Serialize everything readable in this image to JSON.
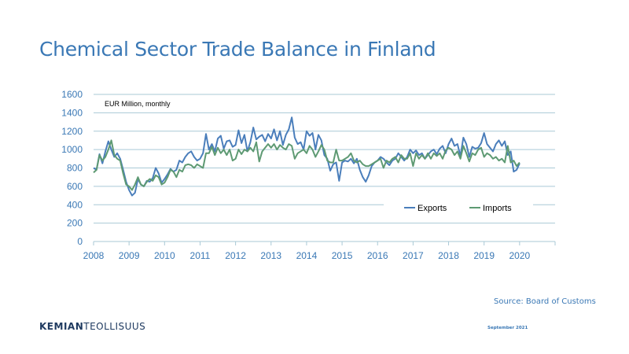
{
  "title": "Chemical Sector Trade Balance in Finland",
  "source": "Source: Board of Customs",
  "logo": {
    "part1": "KEMIAN",
    "part2": "TEOLLISUUS"
  },
  "date": "September 2021",
  "colors": {
    "exports": "#4a7ebb",
    "imports": "#5e9a73",
    "accent": "#3a78b5",
    "grid": "#a9c9d6"
  },
  "chart_data": {
    "type": "line",
    "unit_label": "EUR Million, monthly",
    "ylim": [
      0,
      1600
    ],
    "yticks": [
      0,
      200,
      400,
      600,
      800,
      1000,
      1200,
      1400,
      1600
    ],
    "xlim": [
      2008,
      2021
    ],
    "xticks": [
      2008,
      2009,
      2010,
      2011,
      2012,
      2013,
      2014,
      2015,
      2016,
      2017,
      2018,
      2019,
      2020
    ],
    "grid": "horizontal",
    "legend": "bottom-right",
    "start": "2008-01",
    "series": [
      {
        "name": "Exports",
        "values": [
          800,
          780,
          950,
          850,
          980,
          1090,
          1000,
          920,
          960,
          900,
          780,
          650,
          560,
          500,
          530,
          680,
          620,
          600,
          660,
          650,
          690,
          800,
          740,
          640,
          680,
          730,
          790,
          760,
          780,
          880,
          860,
          920,
          960,
          980,
          920,
          880,
          900,
          960,
          1170,
          1000,
          1060,
          980,
          1120,
          1150,
          1010,
          1090,
          1100,
          1030,
          1050,
          1210,
          1070,
          1160,
          980,
          1080,
          1240,
          1110,
          1140,
          1160,
          1090,
          1170,
          1120,
          1220,
          1100,
          1200,
          1050,
          1160,
          1220,
          1350,
          1130,
          1060,
          1080,
          1000,
          1200,
          1150,
          1180,
          1000,
          1160,
          1100,
          940,
          900,
          770,
          840,
          860,
          660,
          860,
          880,
          870,
          900,
          850,
          900,
          780,
          700,
          650,
          720,
          820,
          860,
          880,
          920,
          900,
          860,
          830,
          880,
          900,
          960,
          920,
          880,
          920,
          1000,
          960,
          990,
          940,
          960,
          900,
          940,
          980,
          1000,
          950,
          1010,
          1040,
          960,
          1060,
          1120,
          1040,
          1060,
          930,
          1130,
          1060,
          920,
          1030,
          1010,
          1020,
          1070,
          1180,
          1060,
          1020,
          980,
          1060,
          1100,
          1040,
          1090,
          940,
          980,
          760,
          780,
          850
        ]
      },
      {
        "name": "Imports",
        "values": [
          750,
          780,
          940,
          880,
          920,
          1000,
          1100,
          940,
          900,
          880,
          740,
          620,
          600,
          560,
          620,
          700,
          620,
          600,
          650,
          680,
          660,
          720,
          700,
          620,
          640,
          700,
          780,
          760,
          700,
          780,
          760,
          830,
          840,
          830,
          800,
          840,
          820,
          800,
          960,
          960,
          1030,
          940,
          1020,
          960,
          1000,
          940,
          1000,
          880,
          900,
          1000,
          950,
          1000,
          980,
          1020,
          980,
          1080,
          870,
          980,
          1020,
          1060,
          1020,
          1060,
          1000,
          1050,
          1020,
          1000,
          1060,
          1040,
          900,
          960,
          980,
          1000,
          960,
          1040,
          1000,
          920,
          980,
          1050,
          1000,
          880,
          860,
          860,
          1000,
          880,
          880,
          900,
          920,
          960,
          880,
          860,
          880,
          840,
          820,
          820,
          840,
          860,
          880,
          900,
          800,
          880,
          860,
          900,
          920,
          860,
          940,
          900,
          900,
          960,
          820,
          960,
          900,
          940,
          900,
          960,
          900,
          960,
          930,
          960,
          900,
          990,
          1020,
          1000,
          940,
          980,
          900,
          1040,
          960,
          870,
          960,
          940,
          1000,
          1020,
          920,
          960,
          940,
          900,
          920,
          880,
          900,
          860,
          1040,
          860,
          880,
          820,
          860
        ]
      }
    ]
  }
}
